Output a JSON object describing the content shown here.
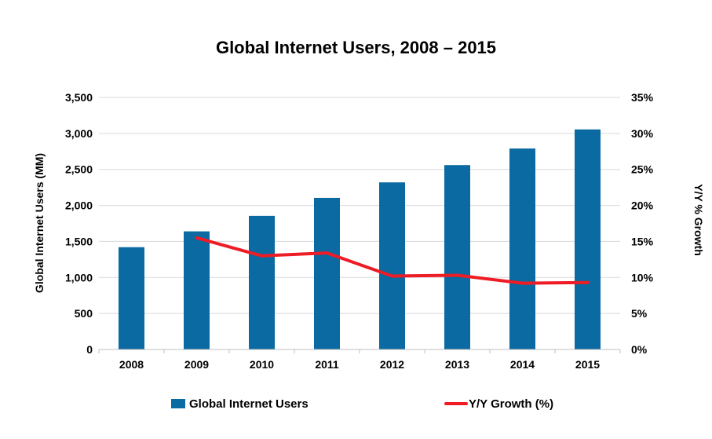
{
  "chart_data": {
    "type": "bar",
    "title": "Global Internet Users, 2008 – 2015",
    "xlabel": "",
    "ylabel": "Global Internet Users (MM)",
    "y2label": "Y/Y % Growth",
    "categories": [
      "2008",
      "2009",
      "2010",
      "2011",
      "2012",
      "2013",
      "2014",
      "2015"
    ],
    "series": [
      {
        "name": "Global Internet Users",
        "type": "bar",
        "axis": "left",
        "color": "#0a6aa1",
        "values": [
          1420,
          1640,
          1855,
          2105,
          2320,
          2560,
          2790,
          3055
        ]
      },
      {
        "name": "Y/Y Growth (%)",
        "type": "line",
        "axis": "right",
        "color": "#ee1c24",
        "values": [
          null,
          15.5,
          13.0,
          13.4,
          10.2,
          10.3,
          9.2,
          9.3
        ]
      }
    ],
    "ylim": [
      0,
      3500
    ],
    "y2lim": [
      0,
      35
    ],
    "yticks": [
      "0",
      "500",
      "1,000",
      "1,500",
      "2,000",
      "2,500",
      "3,000",
      "3,500"
    ],
    "y2ticks": [
      "0%",
      "5%",
      "10%",
      "15%",
      "20%",
      "25%",
      "30%",
      "35%"
    ],
    "grid": true,
    "legend_position": "bottom"
  }
}
